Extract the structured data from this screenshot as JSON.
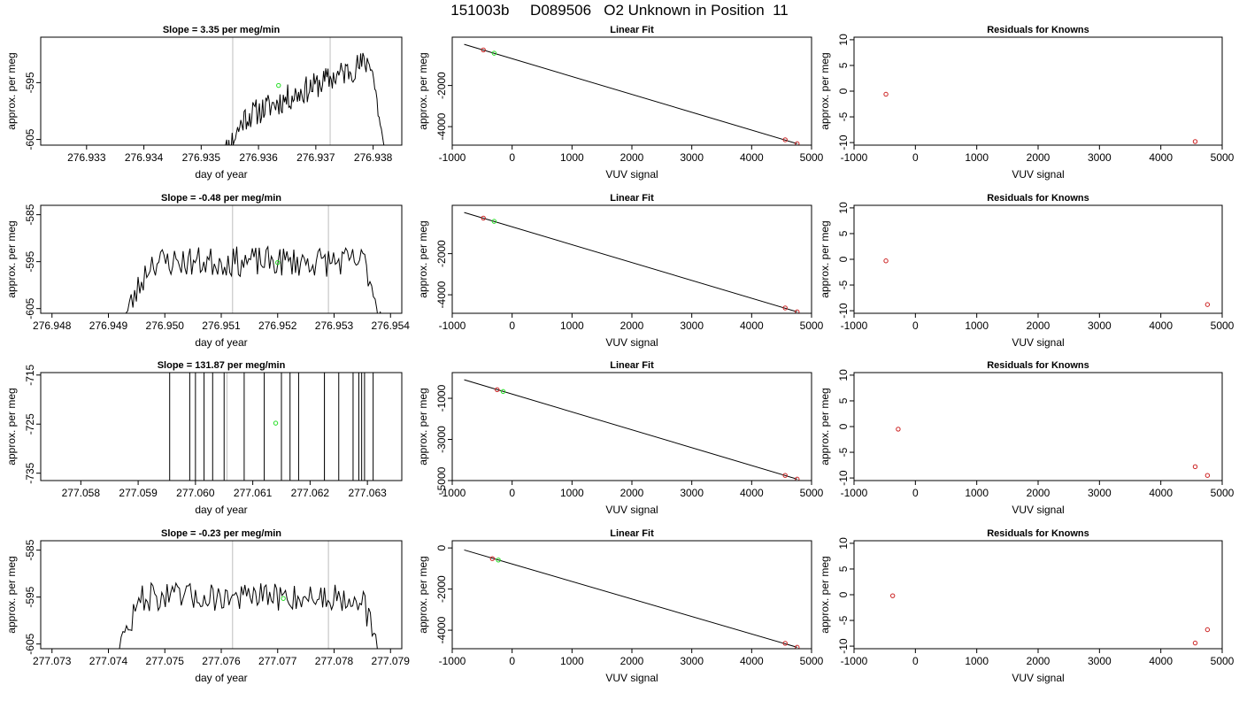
{
  "title": "151003b     D089506   O2 Unknown in Position  11",
  "colors": {
    "line": "#000000",
    "known": "#cc2222",
    "unknown": "#22dd22",
    "vline": "#c8c8c8"
  },
  "chart_data": [
    {
      "panel": "timeseries",
      "type": "line",
      "row": 0,
      "title": "Slope =  3.35  per meg/min",
      "xlabel": "day of year",
      "ylabel": "approx. per meg",
      "xlim": [
        276.9322,
        276.9385
      ],
      "ylim": [
        -606,
        -587
      ],
      "xticks": [
        276.933,
        276.934,
        276.935,
        276.936,
        276.937,
        276.938
      ],
      "xtick_labels": [
        "276.933",
        "276.934",
        "276.935",
        "276.936",
        "276.937",
        "276.938"
      ],
      "yticks": [
        -595,
        -605
      ],
      "ytick_labels": [
        "-595",
        "-605"
      ],
      "vlines": [
        276.93555,
        276.93725
      ],
      "unknown_point": {
        "x": 276.93635,
        "y": -595.5
      },
      "series_profile": {
        "start": 276.93535,
        "end": 276.9382,
        "plateau_start": -603,
        "plateau_end": -590,
        "ramp_time": 0.0004,
        "noise": 1.2,
        "seed": 11
      }
    },
    {
      "panel": "fit",
      "type": "scatter",
      "row": 0,
      "title": "Linear Fit",
      "xlabel": "VUV signal",
      "ylabel": "approx. per meg",
      "xlim": [
        -1000,
        5000
      ],
      "ylim": [
        -4900,
        350
      ],
      "xticks": [
        -1000,
        0,
        1000,
        2000,
        3000,
        4000,
        5000
      ],
      "xtick_labels": [
        "-1000",
        "0",
        "1000",
        "2000",
        "3000",
        "4000",
        "5000"
      ],
      "yticks": [
        -2000,
        -4000
      ],
      "ytick_labels": [
        "-2000",
        "-4000"
      ],
      "fit_line": {
        "x": [
          -800,
          4760
        ],
        "y": [
          0,
          -4830
        ]
      },
      "knowns": [
        {
          "x": -480,
          "y": -270
        },
        {
          "x": 4560,
          "y": -4640
        },
        {
          "x": 4760,
          "y": -4830
        }
      ],
      "unknown": {
        "x": -300,
        "y": -430
      }
    },
    {
      "panel": "residuals",
      "type": "scatter",
      "row": 0,
      "title": "Residuals for Knowns",
      "xlabel": "VUV signal",
      "ylabel": "approx. per meg",
      "xlim": [
        -1000,
        5000
      ],
      "ylim": [
        -10.5,
        10.5
      ],
      "xticks": [
        -1000,
        0,
        1000,
        2000,
        3000,
        4000,
        5000
      ],
      "xtick_labels": [
        "-1000",
        "0",
        "1000",
        "2000",
        "3000",
        "4000",
        "5000"
      ],
      "yticks": [
        10,
        5,
        0,
        -5,
        -10
      ],
      "ytick_labels": [
        "10",
        "5",
        "0",
        "-5",
        "-10"
      ],
      "knowns": [
        {
          "x": -480,
          "y": -0.6
        },
        {
          "x": 4560,
          "y": -9.8
        }
      ]
    },
    {
      "panel": "timeseries",
      "type": "line",
      "row": 1,
      "title": "Slope =  -0.48  per meg/min",
      "xlabel": "day of year",
      "ylabel": "approx. per meg",
      "xlim": [
        276.9478,
        276.9542
      ],
      "ylim": [
        -606,
        -583
      ],
      "xticks": [
        276.948,
        276.949,
        276.95,
        276.951,
        276.952,
        276.953,
        276.954
      ],
      "xtick_labels": [
        "276.948",
        "276.949",
        "276.950",
        "276.951",
        "276.952",
        "276.953",
        "276.954"
      ],
      "yticks": [
        -585,
        -595,
        -605
      ],
      "ytick_labels": [
        "-585",
        "-595",
        "-605"
      ],
      "vlines": [
        276.9512,
        276.9529
      ],
      "unknown_point": {
        "x": 276.952,
        "y": -595.2
      },
      "series_profile": {
        "start": 276.94925,
        "end": 276.95385,
        "plateau_start": -595,
        "plateau_end": -595,
        "ramp_time": 0.0005,
        "noise": 1.6,
        "seed": 23
      }
    },
    {
      "panel": "fit",
      "type": "scatter",
      "row": 1,
      "title": "Linear Fit",
      "xlabel": "VUV signal",
      "ylabel": "approx. per meg",
      "xlim": [
        -1000,
        5000
      ],
      "ylim": [
        -4900,
        350
      ],
      "xticks": [
        -1000,
        0,
        1000,
        2000,
        3000,
        4000,
        5000
      ],
      "xtick_labels": [
        "-1000",
        "0",
        "1000",
        "2000",
        "3000",
        "4000",
        "5000"
      ],
      "yticks": [
        -2000,
        -4000
      ],
      "ytick_labels": [
        "-2000",
        "-4000"
      ],
      "fit_line": {
        "x": [
          -800,
          4760
        ],
        "y": [
          0,
          -4830
        ]
      },
      "knowns": [
        {
          "x": -480,
          "y": -270
        },
        {
          "x": 4560,
          "y": -4640
        },
        {
          "x": 4760,
          "y": -4830
        }
      ],
      "unknown": {
        "x": -300,
        "y": -430
      }
    },
    {
      "panel": "residuals",
      "type": "scatter",
      "row": 1,
      "title": "Residuals for Knowns",
      "xlabel": "VUV signal",
      "ylabel": "approx. per meg",
      "xlim": [
        -1000,
        5000
      ],
      "ylim": [
        -10.5,
        10.5
      ],
      "xticks": [
        -1000,
        0,
        1000,
        2000,
        3000,
        4000,
        5000
      ],
      "xtick_labels": [
        "-1000",
        "0",
        "1000",
        "2000",
        "3000",
        "4000",
        "5000"
      ],
      "yticks": [
        10,
        5,
        0,
        -5,
        -10
      ],
      "ytick_labels": [
        "10",
        "5",
        "0",
        "-5",
        "-10"
      ],
      "knowns": [
        {
          "x": -480,
          "y": -0.3
        },
        {
          "x": 4760,
          "y": -8.8
        }
      ]
    },
    {
      "panel": "timeseries",
      "type": "line",
      "row": 2,
      "title": "Slope =  131.87  per meg/min",
      "xlabel": "day of year",
      "ylabel": "approx. per meg",
      "xlim": [
        277.0573,
        277.0636
      ],
      "ylim": [
        -736.5,
        -714.5
      ],
      "xticks": [
        277.058,
        277.059,
        277.06,
        277.061,
        277.062,
        277.063
      ],
      "xtick_labels": [
        "277.058",
        "277.059",
        "277.060",
        "277.061",
        "277.062",
        "277.063"
      ],
      "yticks": [
        -715,
        -725,
        -735
      ],
      "ytick_labels": [
        "-715",
        "-725",
        "-735"
      ],
      "vlines": [
        277.06055,
        277.06225
      ],
      "unknown_point": {
        "x": 277.0614,
        "y": -724.8
      },
      "spikes_x": [
        277.05955,
        277.0599,
        277.06,
        277.06015,
        277.0603,
        277.0605,
        277.06085,
        277.0612,
        277.0615,
        277.06165,
        277.0618,
        277.06225,
        277.0625,
        277.06275,
        277.06285,
        277.0629,
        277.06295,
        277.0631
      ]
    },
    {
      "panel": "fit",
      "type": "scatter",
      "row": 2,
      "title": "Linear Fit",
      "xlabel": "VUV signal",
      "ylabel": "approx. per meg",
      "xlim": [
        -1000,
        5000
      ],
      "ylim": [
        -5000,
        250
      ],
      "xticks": [
        -1000,
        0,
        1000,
        2000,
        3000,
        4000,
        5000
      ],
      "xtick_labels": [
        "-1000",
        "0",
        "1000",
        "2000",
        "3000",
        "4000",
        "5000"
      ],
      "yticks": [
        -1000,
        -3000,
        -5000
      ],
      "ytick_labels": [
        "-1000",
        "-3000",
        "-5000"
      ],
      "fit_line": {
        "x": [
          -800,
          4760
        ],
        "y": [
          -100,
          -4930
        ]
      },
      "knowns": [
        {
          "x": -250,
          "y": -580
        },
        {
          "x": 4560,
          "y": -4750
        },
        {
          "x": 4760,
          "y": -4930
        }
      ],
      "unknown": {
        "x": -150,
        "y": -670
      }
    },
    {
      "panel": "residuals",
      "type": "scatter",
      "row": 2,
      "title": "Residuals for Knowns",
      "xlabel": "VUV signal",
      "ylabel": "approx. per meg",
      "xlim": [
        -1000,
        5000
      ],
      "ylim": [
        -10.5,
        10.5
      ],
      "xticks": [
        -1000,
        0,
        1000,
        2000,
        3000,
        4000,
        5000
      ],
      "xtick_labels": [
        "-1000",
        "0",
        "1000",
        "2000",
        "3000",
        "4000",
        "5000"
      ],
      "yticks": [
        10,
        5,
        0,
        -5,
        -10
      ],
      "ytick_labels": [
        "10",
        "5",
        "0",
        "-5",
        "-10"
      ],
      "knowns": [
        {
          "x": -280,
          "y": -0.5
        },
        {
          "x": 4560,
          "y": -7.8
        },
        {
          "x": 4760,
          "y": -9.5
        }
      ]
    },
    {
      "panel": "timeseries",
      "type": "line",
      "row": 3,
      "title": "Slope =  -0.23  per meg/min",
      "xlabel": "day of year",
      "ylabel": "approx. per meg",
      "xlim": [
        277.0728,
        277.0792
      ],
      "ylim": [
        -606,
        -583
      ],
      "xticks": [
        277.073,
        277.074,
        277.075,
        277.076,
        277.077,
        277.078,
        277.079
      ],
      "xtick_labels": [
        "277.073",
        "277.074",
        "277.075",
        "277.076",
        "277.077",
        "277.078",
        "277.079"
      ],
      "yticks": [
        -585,
        -595,
        -605
      ],
      "ytick_labels": [
        "-585",
        "-595",
        "-605"
      ],
      "vlines": [
        277.0762,
        277.0779
      ],
      "unknown_point": {
        "x": 277.0771,
        "y": -595.3
      },
      "series_profile": {
        "start": 277.0741,
        "end": 277.0788,
        "plateau_start": -595,
        "plateau_end": -595,
        "ramp_time": 0.0005,
        "noise": 1.5,
        "seed": 47
      }
    },
    {
      "panel": "fit",
      "type": "scatter",
      "row": 3,
      "title": "Linear Fit",
      "xlabel": "VUV signal",
      "ylabel": "approx. per meg",
      "xlim": [
        -1000,
        5000
      ],
      "ylim": [
        -4900,
        350
      ],
      "xticks": [
        -1000,
        0,
        1000,
        2000,
        3000,
        4000,
        5000
      ],
      "xtick_labels": [
        "-1000",
        "0",
        "1000",
        "2000",
        "3000",
        "4000",
        "5000"
      ],
      "yticks": [
        0,
        -2000,
        -4000
      ],
      "ytick_labels": [
        "0",
        "-2000",
        "-4000"
      ],
      "fit_line": {
        "x": [
          -800,
          4760
        ],
        "y": [
          -100,
          -4830
        ]
      },
      "knowns": [
        {
          "x": -330,
          "y": -520
        },
        {
          "x": 4560,
          "y": -4640
        },
        {
          "x": 4760,
          "y": -4830
        }
      ],
      "unknown": {
        "x": -230,
        "y": -590
      }
    },
    {
      "panel": "residuals",
      "type": "scatter",
      "row": 3,
      "title": "Residuals for Knowns",
      "xlabel": "VUV signal",
      "ylabel": "approx. per meg",
      "xlim": [
        -1000,
        5000
      ],
      "ylim": [
        -10.5,
        10.5
      ],
      "xticks": [
        -1000,
        0,
        1000,
        2000,
        3000,
        4000,
        5000
      ],
      "xtick_labels": [
        "-1000",
        "0",
        "1000",
        "2000",
        "3000",
        "4000",
        "5000"
      ],
      "yticks": [
        10,
        5,
        0,
        -5,
        -10
      ],
      "ytick_labels": [
        "10",
        "5",
        "0",
        "-5",
        "-10"
      ],
      "knowns": [
        {
          "x": -370,
          "y": -0.2
        },
        {
          "x": 4560,
          "y": -9.4
        },
        {
          "x": 4760,
          "y": -6.8
        }
      ]
    }
  ]
}
